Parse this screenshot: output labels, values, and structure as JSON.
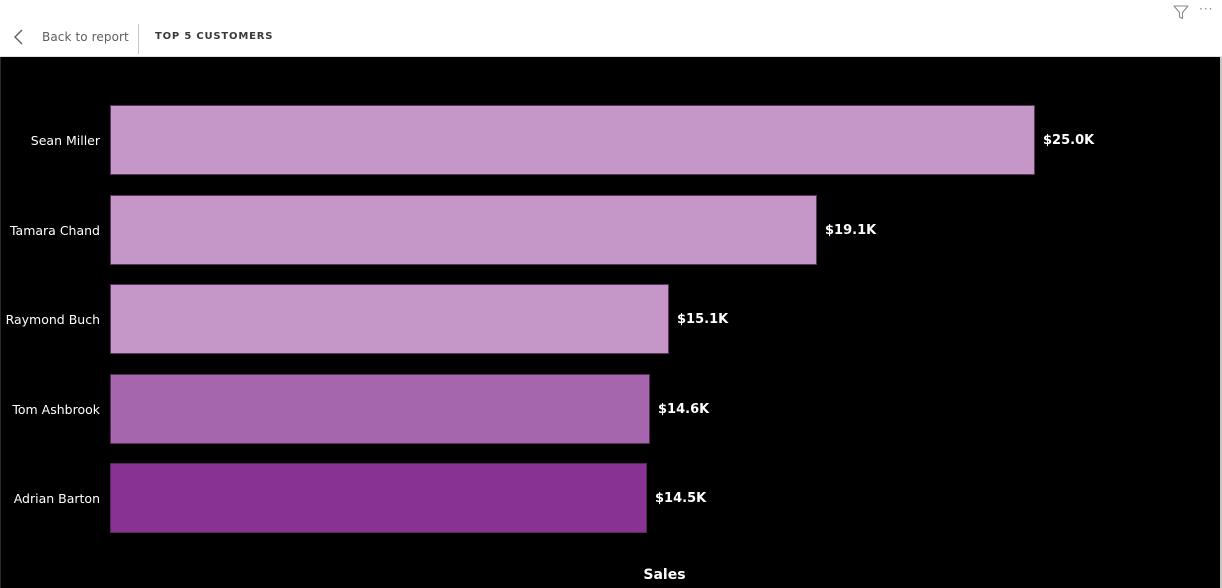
{
  "header": {
    "back_label": "Back to report",
    "visual_title": "TOP 5 CUSTOMERS",
    "icons": {
      "back": "chevron-left-icon",
      "filter": "filter-icon",
      "more": "more-options-icon"
    },
    "more_glyph": "···"
  },
  "colors": {
    "canvas_bg": "#000000",
    "bar_light": "#c597c9",
    "bar_medium": "#a566ae",
    "bar_dark": "#883393",
    "label_text": "#ffffff"
  },
  "chart_data": {
    "type": "bar",
    "orientation": "horizontal",
    "title": "TOP 5 CUSTOMERS",
    "xlabel": "Sales",
    "ylabel": "",
    "categories": [
      "Sean Miller",
      "Tamara Chand",
      "Raymond Buch",
      "Tom Ashbrook",
      "Adrian Barton"
    ],
    "values": [
      25.0,
      19.1,
      15.1,
      14.6,
      14.5
    ],
    "value_unit": "K USD",
    "data_labels": [
      "$25.0K",
      "$19.1K",
      "$15.1K",
      "$14.6K",
      "$14.5K"
    ],
    "bar_colors": [
      "#c597c9",
      "#c597c9",
      "#c597c9",
      "#a566ae",
      "#883393"
    ],
    "xlim": [
      0,
      25.0
    ],
    "grid": false,
    "legend": "none"
  }
}
